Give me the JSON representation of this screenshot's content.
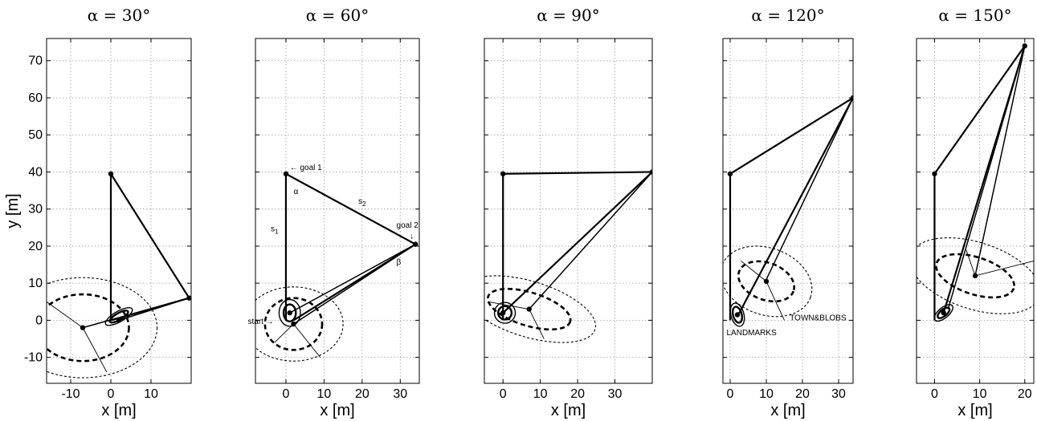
{
  "chart_data": [
    {
      "type": "scatter",
      "title": "α = 30°",
      "xlabel": "x [m]",
      "ylabel": "y [m]",
      "xlim": [
        -16,
        20
      ],
      "ylim": [
        -17,
        76
      ],
      "xticks": [
        -10,
        0,
        10
      ],
      "yticks": [
        -10,
        0,
        10,
        20,
        30,
        40,
        50,
        60,
        70
      ],
      "grid": true,
      "path": [
        [
          0,
          0
        ],
        [
          0,
          39.5
        ],
        [
          19.5,
          6
        ],
        [
          0,
          0
        ]
      ],
      "rays": [
        [
          [
            19.5,
            6
          ],
          [
            2,
            0
          ]
        ],
        [
          [
            19.5,
            6
          ],
          [
            -7,
            -2
          ]
        ]
      ],
      "ellipses": [
        {
          "center": [
            -7,
            -2
          ],
          "rx": 18.5,
          "ry": 13.5,
          "angle": 0,
          "style": "thin-dashed"
        },
        {
          "center": [
            -7,
            -2
          ],
          "rx": 11.5,
          "ry": 9,
          "angle": 0,
          "style": "thick-dashed"
        },
        {
          "center": [
            2,
            1
          ],
          "rx": 3.8,
          "ry": 1.4,
          "angle": 30,
          "style": "solid"
        },
        {
          "center": [
            2,
            1
          ],
          "rx": 2.6,
          "ry": 0.9,
          "angle": 30,
          "style": "solid-thick"
        }
      ],
      "axes_lines": [
        [
          [
            -7,
            -2
          ],
          [
            -16,
            5
          ]
        ],
        [
          [
            -7,
            -2
          ],
          [
            -1,
            -14
          ]
        ]
      ],
      "points": [
        [
          0,
          39.5
        ],
        [
          19.5,
          6
        ],
        [
          -7,
          -2
        ],
        [
          2,
          0
        ]
      ],
      "annotations": []
    },
    {
      "type": "scatter",
      "title": "α = 60°",
      "xlabel": "x [m]",
      "ylabel": "",
      "xlim": [
        -8,
        35
      ],
      "ylim": [
        -17,
        76
      ],
      "xticks": [
        0,
        10,
        20,
        30
      ],
      "yticks": [
        -10,
        0,
        10,
        20,
        30,
        40,
        50,
        60,
        70
      ],
      "grid": true,
      "path": [
        [
          0,
          0
        ],
        [
          0,
          39.5
        ],
        [
          34,
          20.5
        ],
        [
          2,
          0
        ]
      ],
      "rays": [
        [
          [
            34,
            20.5
          ],
          [
            1,
            2
          ]
        ],
        [
          [
            34,
            20.5
          ],
          [
            2,
            -1
          ]
        ]
      ],
      "ellipses": [
        {
          "center": [
            2,
            -1
          ],
          "rx": 13,
          "ry": 10,
          "angle": 0,
          "style": "thin-dashed"
        },
        {
          "center": [
            2,
            -1
          ],
          "rx": 7.5,
          "ry": 7,
          "angle": 0,
          "style": "thick-dashed"
        },
        {
          "center": [
            1,
            2
          ],
          "rx": 2.8,
          "ry": 3.6,
          "angle": 0,
          "style": "solid"
        },
        {
          "center": [
            1,
            2
          ],
          "rx": 1.6,
          "ry": 2.3,
          "angle": 0,
          "style": "solid-thick"
        }
      ],
      "axes_lines": [
        [
          [
            2,
            -1
          ],
          [
            9,
            -10
          ]
        ],
        [
          [
            2,
            -1
          ],
          [
            -3,
            -6
          ]
        ]
      ],
      "points": [
        [
          0,
          39.5
        ],
        [
          34,
          20.5
        ],
        [
          1,
          2
        ],
        [
          2,
          -1
        ]
      ],
      "annotations": [
        {
          "text": "← goal 1",
          "x": 1,
          "y": 40.5
        },
        {
          "text": "α",
          "x": 2,
          "y": 34
        },
        {
          "text": "s",
          "sub": "2",
          "x": 19,
          "y": 31.5
        },
        {
          "text": "goal 2",
          "x": 29,
          "y": 25
        },
        {
          "text": "↓",
          "x": 32.5,
          "y": 22
        },
        {
          "text": "β",
          "x": 29,
          "y": 15
        },
        {
          "text": "s",
          "sub": "1",
          "x": -4,
          "y": 24
        },
        {
          "text": "start →",
          "x": -10,
          "y": -1
        }
      ]
    },
    {
      "type": "scatter",
      "title": "α = 90°",
      "xlabel": "x [m]",
      "ylabel": "",
      "xlim": [
        -5,
        40
      ],
      "ylim": [
        -17,
        76
      ],
      "xticks": [
        0,
        10,
        20,
        30
      ],
      "yticks": [
        -10,
        0,
        10,
        20,
        30,
        40,
        50,
        60,
        70
      ],
      "grid": true,
      "path": [
        [
          0,
          0
        ],
        [
          0,
          39.5
        ],
        [
          40,
          40
        ],
        [
          0,
          2
        ]
      ],
      "rays": [
        [
          [
            40,
            40
          ],
          [
            7,
            3
          ]
        ]
      ],
      "ellipses": [
        {
          "center": [
            7,
            3
          ],
          "rx": 18.5,
          "ry": 7.5,
          "angle": -17,
          "style": "thin-dashed"
        },
        {
          "center": [
            7,
            3
          ],
          "rx": 11.5,
          "ry": 4.5,
          "angle": -17,
          "style": "thick-dashed"
        },
        {
          "center": [
            0.5,
            2
          ],
          "rx": 2.8,
          "ry": 2.8,
          "angle": 0,
          "style": "solid"
        },
        {
          "center": [
            0.5,
            2
          ],
          "rx": 1.8,
          "ry": 1.8,
          "angle": 0,
          "style": "solid-thick"
        }
      ],
      "axes_lines": [
        [
          [
            7,
            3
          ],
          [
            11,
            -5
          ]
        ],
        [
          [
            7,
            3
          ],
          [
            -4,
            5
          ]
        ]
      ],
      "points": [
        [
          0,
          39.5
        ],
        [
          40,
          40
        ],
        [
          7,
          3
        ],
        [
          0,
          2
        ]
      ],
      "annotations": []
    },
    {
      "type": "scatter",
      "title": "α = 120°",
      "xlabel": "x [m]",
      "ylabel": "",
      "xlim": [
        -2,
        34
      ],
      "ylim": [
        -17,
        76
      ],
      "xticks": [
        0,
        10,
        20,
        30
      ],
      "yticks": [
        -10,
        0,
        10,
        20,
        30,
        40,
        50,
        60,
        70
      ],
      "grid": true,
      "path": [
        [
          0,
          0
        ],
        [
          0,
          39.5
        ],
        [
          34,
          60
        ],
        [
          2,
          1
        ]
      ],
      "rays": [
        [
          [
            34,
            60
          ],
          [
            10,
            11
          ]
        ]
      ],
      "ellipses": [
        {
          "center": [
            10,
            10.5
          ],
          "rx": 13,
          "ry": 9,
          "angle": -20,
          "style": "thin-dashed"
        },
        {
          "center": [
            10,
            10.5
          ],
          "rx": 8,
          "ry": 5,
          "angle": -20,
          "style": "thick-dashed"
        },
        {
          "center": [
            2,
            1.5
          ],
          "rx": 1.8,
          "ry": 3.2,
          "angle": 15,
          "style": "solid"
        },
        {
          "center": [
            2,
            1.5
          ],
          "rx": 1.2,
          "ry": 2.2,
          "angle": 15,
          "style": "solid-thick"
        }
      ],
      "axes_lines": [
        [
          [
            10,
            10.5
          ],
          [
            15,
            0
          ]
        ],
        [
          [
            10,
            10.5
          ],
          [
            3,
            16
          ]
        ]
      ],
      "points": [
        [
          0,
          39.5
        ],
        [
          34,
          60
        ],
        [
          10,
          10.5
        ],
        [
          2,
          1.5
        ]
      ],
      "annotations": [
        {
          "text": "LANDMARKS",
          "x": -1,
          "y": -4
        },
        {
          "text": "TOWN&BLOBS",
          "x": 16.5,
          "y": 0
        }
      ]
    },
    {
      "type": "scatter",
      "title": "α = 150°",
      "xlabel": "x [m]",
      "ylabel": "",
      "xlim": [
        -4,
        22
      ],
      "ylim": [
        -17,
        76
      ],
      "xticks": [
        0,
        10,
        20
      ],
      "yticks": [
        -10,
        0,
        10,
        20,
        30,
        40,
        50,
        60,
        70
      ],
      "grid": true,
      "path": [
        [
          0,
          0
        ],
        [
          0,
          39.5
        ],
        [
          20,
          74
        ],
        [
          2,
          2
        ]
      ],
      "rays": [
        [
          [
            20,
            74
          ],
          [
            9,
            12
          ]
        ],
        [
          [
            20,
            74
          ],
          [
            3,
            3
          ]
        ]
      ],
      "ellipses": [
        {
          "center": [
            9,
            12
          ],
          "rx": 15,
          "ry": 9,
          "angle": -18,
          "style": "thin-dashed"
        },
        {
          "center": [
            9,
            12
          ],
          "rx": 9,
          "ry": 5,
          "angle": -18,
          "style": "thick-dashed"
        },
        {
          "center": [
            2,
            2
          ],
          "rx": 2.5,
          "ry": 1.4,
          "angle": 40,
          "style": "solid"
        },
        {
          "center": [
            2,
            2
          ],
          "rx": 1.6,
          "ry": 0.9,
          "angle": 40,
          "style": "solid-thick"
        }
      ],
      "axes_lines": [
        [
          [
            9,
            12
          ],
          [
            22,
            16
          ]
        ],
        [
          [
            9,
            12
          ],
          [
            7,
            19
          ]
        ]
      ],
      "points": [
        [
          0,
          39.5
        ],
        [
          20,
          74
        ],
        [
          9,
          12
        ],
        [
          2,
          2
        ]
      ],
      "annotations": []
    }
  ]
}
